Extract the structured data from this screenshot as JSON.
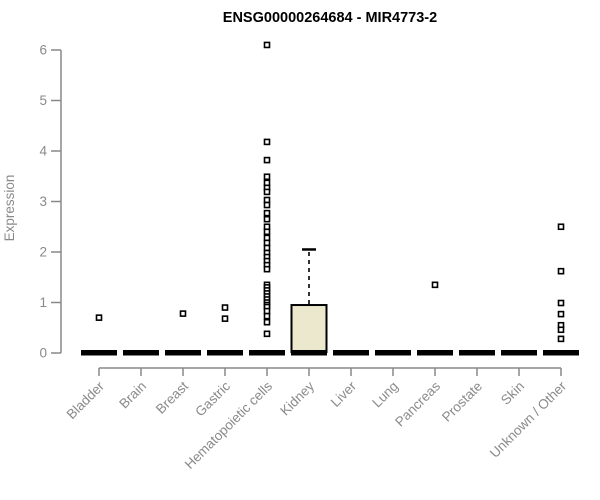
{
  "chart_data": {
    "type": "boxplot",
    "title": "ENSG00000264684 - MIR4773-2",
    "ylabel": "Expression",
    "xlabel": "",
    "ylim": [
      0,
      6
    ],
    "yticks": [
      0,
      1,
      2,
      3,
      4,
      5,
      6
    ],
    "grid": false,
    "legend": false,
    "categories": [
      "Bladder",
      "Brain",
      "Breast",
      "Gastric",
      "Hematopoietic cells",
      "Kidney",
      "Liver",
      "Lung",
      "Pancreas",
      "Prostate",
      "Skin",
      "Unknown / Other"
    ],
    "boxes": [
      {
        "category": "Bladder",
        "median": 0,
        "q1": 0,
        "q3": 0,
        "whisker_low": 0,
        "whisker_high": 0,
        "outliers": [
          0.7
        ]
      },
      {
        "category": "Brain",
        "median": 0,
        "q1": 0,
        "q3": 0,
        "whisker_low": 0,
        "whisker_high": 0,
        "outliers": []
      },
      {
        "category": "Breast",
        "median": 0,
        "q1": 0,
        "q3": 0,
        "whisker_low": 0,
        "whisker_high": 0,
        "outliers": [
          0.78
        ]
      },
      {
        "category": "Gastric",
        "median": 0,
        "q1": 0,
        "q3": 0,
        "whisker_low": 0,
        "whisker_high": 0,
        "outliers": [
          0.9,
          0.68
        ]
      },
      {
        "category": "Hematopoietic cells",
        "median": 0,
        "q1": 0,
        "q3": 0,
        "whisker_low": 0,
        "whisker_high": 0,
        "outliers": [
          6.1,
          4.18,
          3.82,
          3.49,
          3.37,
          3.27,
          3.19,
          3.03,
          2.93,
          2.77,
          2.65,
          2.5,
          2.4,
          2.28,
          2.18,
          2.08,
          1.98,
          1.9,
          1.82,
          1.74,
          1.66,
          1.35,
          1.3,
          1.24,
          1.18,
          1.12,
          1.06,
          1.0,
          0.95,
          0.91,
          0.83,
          0.73,
          0.61,
          0.38
        ]
      },
      {
        "category": "Kidney",
        "median": 0,
        "q1": 0,
        "q3": 0.95,
        "whisker_low": 0,
        "whisker_high": 2.05,
        "outliers": []
      },
      {
        "category": "Liver",
        "median": 0,
        "q1": 0,
        "q3": 0,
        "whisker_low": 0,
        "whisker_high": 0,
        "outliers": []
      },
      {
        "category": "Lung",
        "median": 0,
        "q1": 0,
        "q3": 0,
        "whisker_low": 0,
        "whisker_high": 0,
        "outliers": []
      },
      {
        "category": "Pancreas",
        "median": 0,
        "q1": 0,
        "q3": 0,
        "whisker_low": 0,
        "whisker_high": 0,
        "outliers": [
          1.35
        ]
      },
      {
        "category": "Prostate",
        "median": 0,
        "q1": 0,
        "q3": 0,
        "whisker_low": 0,
        "whisker_high": 0,
        "outliers": []
      },
      {
        "category": "Skin",
        "median": 0,
        "q1": 0,
        "q3": 0,
        "whisker_low": 0,
        "whisker_high": 0,
        "outliers": []
      },
      {
        "category": "Unknown / Other",
        "median": 0,
        "q1": 0,
        "q3": 0,
        "whisker_low": 0,
        "whisker_high": 0,
        "outliers": [
          2.5,
          1.62,
          0.99,
          0.77,
          0.55,
          0.46,
          0.28
        ]
      }
    ],
    "colors": {
      "box_fill": "#ECE8CD",
      "box_stroke": "#000000",
      "median_color": "#000000",
      "outlier_stroke": "#000000",
      "outlier_fill": "#FFFFFF",
      "axis_color": "#888888",
      "tick_label_color": "#8A8A8A",
      "title_color": "#000000",
      "background": "#FFFFFF"
    }
  }
}
